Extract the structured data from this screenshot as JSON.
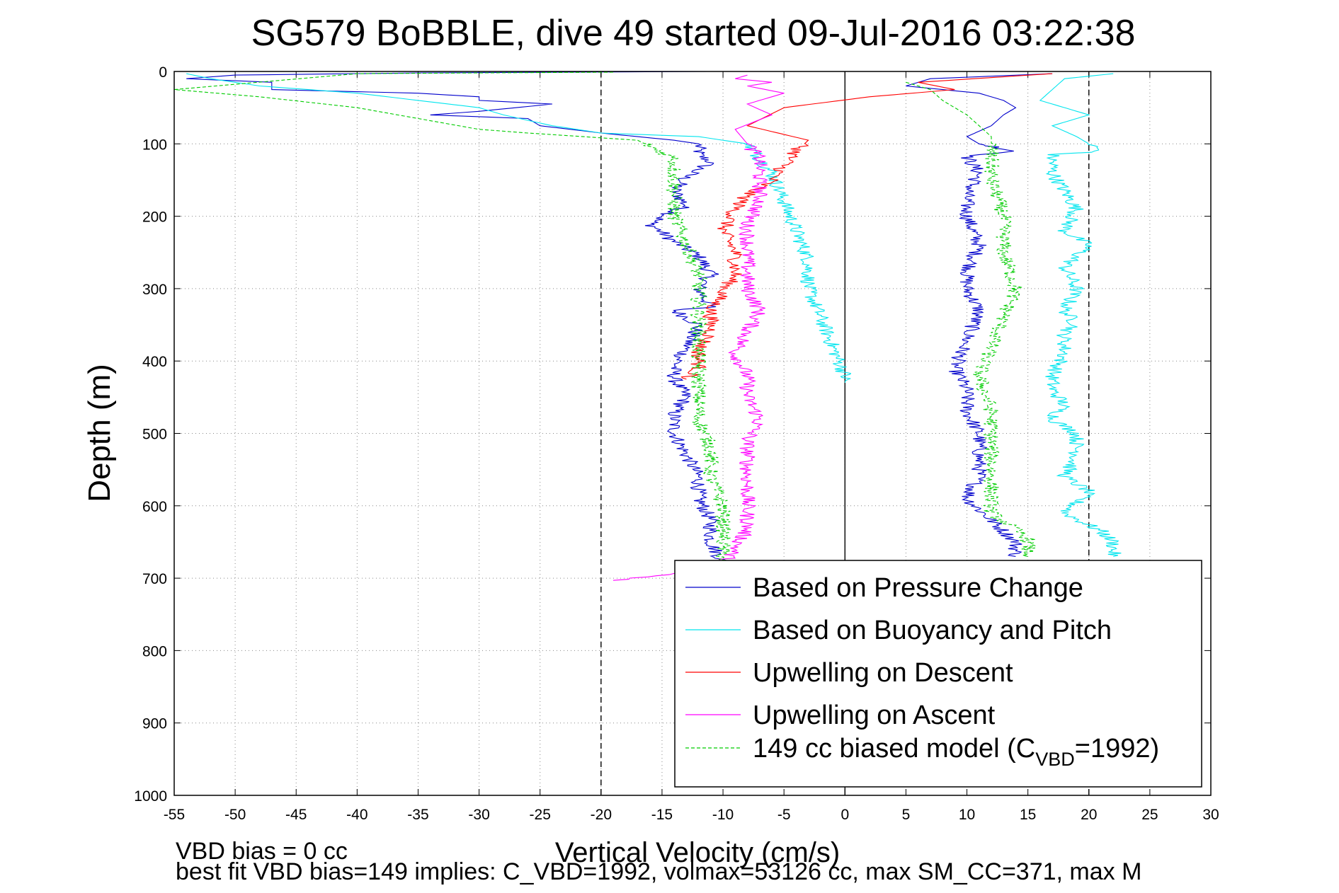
{
  "chart_data": {
    "type": "line",
    "title": "SG579 BoBBLE, dive 49 started 09-Jul-2016 03:22:38",
    "xlabel": "Vertical Velocity (cm/s)",
    "ylabel": "Depth (m)",
    "xlim": [
      -55,
      30
    ],
    "ylim": [
      0,
      1000
    ],
    "y_reversed": true,
    "grid": true,
    "legend_position": "bottom-right",
    "xticks": [
      "-55",
      "-50",
      "-45",
      "-40",
      "-35",
      "-30",
      "-25",
      "-20",
      "-15",
      "-10",
      "-5",
      "0",
      "5",
      "10",
      "15",
      "20",
      "25",
      "30"
    ],
    "yticks": [
      "0",
      "100",
      "200",
      "300",
      "400",
      "500",
      "600",
      "700",
      "800",
      "900",
      "1000"
    ],
    "reference_lines": [
      {
        "x": -20,
        "style": "dashed",
        "color": "#000000"
      },
      {
        "x": 20,
        "style": "dashed",
        "color": "#000000"
      },
      {
        "x": 0,
        "style": "solid",
        "color": "#000000"
      }
    ],
    "series": [
      {
        "name": "Based on Pressure Change",
        "color": "#0000cc",
        "style": "solid",
        "segments": [
          [
            [
              -11,
              0
            ],
            [
              -35,
              2
            ],
            [
              -50,
              5
            ],
            [
              -54,
              10
            ],
            [
              -47,
              15
            ],
            [
              -47,
              25
            ],
            [
              -35,
              30
            ],
            [
              -30,
              35
            ],
            [
              -30,
              40
            ],
            [
              -24,
              45
            ],
            [
              -30,
              55
            ],
            [
              -34,
              60
            ],
            [
              -26,
              65
            ],
            [
              -25,
              75
            ],
            [
              -20,
              85
            ],
            [
              -14,
              95
            ],
            [
              -12,
              100
            ],
            [
              -12,
              115
            ],
            [
              -11,
              125
            ],
            [
              -13,
              145
            ],
            [
              -14,
              165
            ],
            [
              -13,
              185
            ],
            [
              -16,
              210
            ],
            [
              -14,
              235
            ],
            [
              -12,
              255
            ],
            [
              -11,
              280
            ],
            [
              -12,
              300
            ],
            [
              -11,
              325
            ],
            [
              -14,
              330
            ],
            [
              -12,
              350
            ],
            [
              -13,
              380
            ],
            [
              -14,
              410
            ],
            [
              -14,
              425
            ],
            [
              -13,
              450
            ],
            [
              -14,
              470
            ],
            [
              -14,
              500
            ],
            [
              -13,
              530
            ],
            [
              -12,
              560
            ],
            [
              -12,
              590
            ],
            [
              -11,
              620
            ],
            [
              -11,
              650
            ],
            [
              -10,
              680
            ]
          ],
          [
            [
              17,
              3
            ],
            [
              7,
              10
            ],
            [
              5,
              20
            ],
            [
              11,
              30
            ],
            [
              13,
              40
            ],
            [
              14,
              50
            ],
            [
              13,
              60
            ],
            [
              12,
              75
            ],
            [
              10,
              90
            ],
            [
              11,
              100
            ],
            [
              14,
              110
            ],
            [
              10,
              118
            ],
            [
              11,
              140
            ],
            [
              10,
              170
            ],
            [
              10,
              200
            ],
            [
              11,
              240
            ],
            [
              10,
              280
            ],
            [
              10,
              300
            ],
            [
              11,
              330
            ],
            [
              10,
              370
            ],
            [
              9,
              410
            ],
            [
              10,
              440
            ],
            [
              10,
              470
            ],
            [
              11,
              500
            ],
            [
              11,
              530
            ],
            [
              11,
              560
            ],
            [
              10,
              590
            ],
            [
              12,
              620
            ],
            [
              14,
              650
            ],
            [
              14,
              670
            ]
          ]
        ]
      },
      {
        "name": "Based on Buoyancy and Pitch",
        "color": "#00e5ee",
        "style": "solid",
        "segments": [
          [
            [
              -54,
              3
            ],
            [
              -52,
              10
            ],
            [
              -48,
              20
            ],
            [
              -40,
              30
            ],
            [
              -35,
              40
            ],
            [
              -30,
              50
            ],
            [
              -28,
              60
            ],
            [
              -24,
              75
            ],
            [
              -20,
              85
            ],
            [
              -12,
              90
            ],
            [
              -8,
              100
            ],
            [
              -6,
              140
            ],
            [
              -5,
              180
            ],
            [
              -4,
              220
            ],
            [
              -3,
              260
            ],
            [
              -3,
              300
            ],
            [
              -2,
              340
            ],
            [
              -1,
              380
            ],
            [
              0,
              420
            ],
            [
              0,
              430
            ]
          ],
          [
            [
              22,
              3
            ],
            [
              18,
              10
            ],
            [
              16,
              40
            ],
            [
              20,
              60
            ],
            [
              17,
              75
            ],
            [
              19,
              90
            ],
            [
              21,
              110
            ],
            [
              17,
              115
            ],
            [
              17,
              140
            ],
            [
              18,
              165
            ],
            [
              19,
              190
            ],
            [
              18,
              220
            ],
            [
              20,
              240
            ],
            [
              18,
              270
            ],
            [
              19,
              300
            ],
            [
              18,
              330
            ],
            [
              19,
              350
            ],
            [
              18,
              360
            ],
            [
              18,
              390
            ],
            [
              17,
              420
            ],
            [
              17,
              440
            ],
            [
              18,
              460
            ],
            [
              17,
              480
            ],
            [
              19,
              500
            ],
            [
              19,
              530
            ],
            [
              18,
              560
            ],
            [
              20,
              580
            ],
            [
              18,
              610
            ],
            [
              21,
              635
            ],
            [
              22,
              650
            ],
            [
              22,
              670
            ]
          ]
        ]
      },
      {
        "name": "Upwelling on Descent",
        "color": "#ff0000",
        "style": "solid",
        "segments": [
          [
            [
              17,
              3
            ],
            [
              6,
              15
            ],
            [
              9,
              25
            ],
            [
              2,
              35
            ],
            [
              -5,
              50
            ],
            [
              -8,
              75
            ],
            [
              -3,
              95
            ],
            [
              -4,
              110
            ],
            [
              -5,
              130
            ],
            [
              -6,
              150
            ],
            [
              -8,
              170
            ],
            [
              -9,
              190
            ],
            [
              -10,
              220
            ],
            [
              -9,
              250
            ],
            [
              -9,
              280
            ],
            [
              -10,
              305
            ],
            [
              -11,
              330
            ],
            [
              -11,
              360
            ],
            [
              -12,
              385
            ],
            [
              -12,
              410
            ],
            [
              -13,
              425
            ]
          ]
        ]
      },
      {
        "name": "Upwelling on Ascent",
        "color": "#ff00ff",
        "style": "solid",
        "segments": [
          [
            [
              -8,
              5
            ],
            [
              -9,
              10
            ],
            [
              -6,
              15
            ],
            [
              -8,
              20
            ],
            [
              -5,
              30
            ],
            [
              -8,
              45
            ],
            [
              -6,
              60
            ],
            [
              -9,
              80
            ],
            [
              -8,
              100
            ],
            [
              -7,
              120
            ],
            [
              -7,
              150
            ],
            [
              -7,
              180
            ],
            [
              -8,
              210
            ],
            [
              -8,
              240
            ],
            [
              -8,
              270
            ],
            [
              -8,
              300
            ],
            [
              -7,
              330
            ],
            [
              -8,
              360
            ],
            [
              -9,
              390
            ],
            [
              -8,
              420
            ],
            [
              -8,
              450
            ],
            [
              -7,
              480
            ],
            [
              -8,
              510
            ],
            [
              -8,
              540
            ],
            [
              -8,
              570
            ],
            [
              -8,
              600
            ],
            [
              -8,
              630
            ],
            [
              -9,
              660
            ],
            [
              -10,
              680
            ],
            [
              -13,
              692
            ],
            [
              -19,
              703
            ]
          ]
        ]
      },
      {
        "name": "149 cc biased model (C",
        "name_subscript": "VBD",
        "name_suffix": "=1992)",
        "color": "#00cc00",
        "style": "dashed",
        "segments": [
          [
            [
              -19,
              1
            ],
            [
              -40,
              3
            ],
            [
              -55,
              25
            ],
            [
              -48,
              35
            ],
            [
              -40,
              50
            ],
            [
              -35,
              65
            ],
            [
              -30,
              80
            ],
            [
              -26,
              85
            ],
            [
              -17,
              95
            ],
            [
              -14,
              120
            ],
            [
              -14,
              140
            ],
            [
              -14,
              170
            ],
            [
              -14,
              200
            ],
            [
              -13,
              240
            ],
            [
              -12,
              280
            ],
            [
              -12,
              320
            ],
            [
              -12,
              360
            ],
            [
              -12,
              400
            ],
            [
              -12,
              440
            ],
            [
              -12,
              480
            ],
            [
              -11,
              520
            ],
            [
              -11,
              560
            ],
            [
              -10,
              600
            ],
            [
              -10,
              640
            ],
            [
              -10,
              680
            ]
          ],
          [
            [
              5,
              15
            ],
            [
              7,
              25
            ],
            [
              8,
              40
            ],
            [
              10,
              60
            ],
            [
              12,
              90
            ],
            [
              12,
              110
            ],
            [
              12,
              150
            ],
            [
              13,
              200
            ],
            [
              13,
              250
            ],
            [
              14,
              300
            ],
            [
              13,
              340
            ],
            [
              12,
              380
            ],
            [
              11,
              420
            ],
            [
              12,
              470
            ],
            [
              12,
              520
            ],
            [
              12,
              570
            ],
            [
              12,
              610
            ],
            [
              15,
              645
            ],
            [
              15,
              670
            ]
          ]
        ]
      }
    ],
    "footnotes": [
      "VBD bias = 0 cc",
      "best fit VBD bias=149 implies: C_VBD=1992, volmax=53126 cc, max SM_CC=371, max M"
    ]
  }
}
